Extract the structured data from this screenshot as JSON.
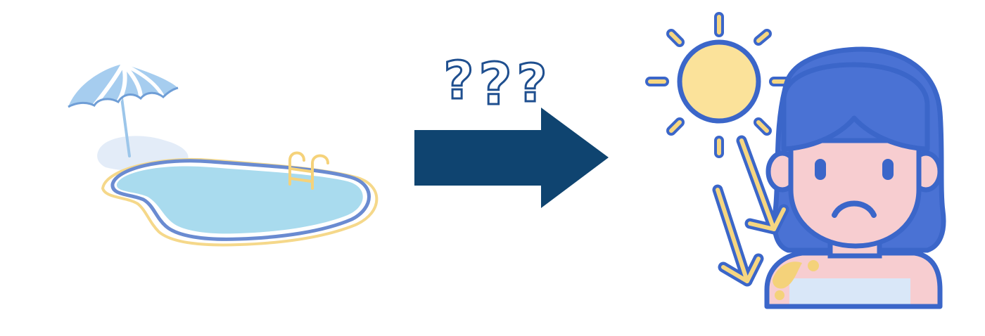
{
  "diagram": {
    "left_illustration": "swimming-pool",
    "connector": "arrow",
    "annotation": "???",
    "right_illustration": "sunburned-person"
  },
  "colors": {
    "background": "#ffffff",
    "arrow": "#0f4470",
    "question_marks": "#1f4f8f",
    "pool_water": "#a9dbee",
    "pool_rim": "#6a8bd1",
    "pool_sand": "#f5d88a",
    "umbrella": "#a6cdef",
    "sun_fill": "#fbe29a",
    "sun_ray": "#f6d680",
    "outline": "#3b66c9",
    "hair": "#4a72d4",
    "skin": "#f7cdd0",
    "burn": "#f4d27a",
    "top": "#d9e7f8"
  }
}
